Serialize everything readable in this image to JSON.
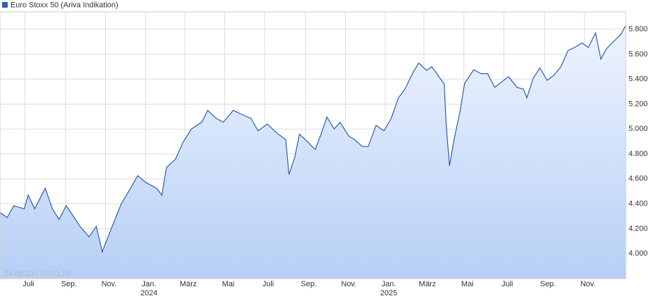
{
  "chart_data": {
    "type": "area",
    "range_label": "24.05.23 - 03.01.26",
    "xlim": [
      "2023-05-24",
      "2026-01-03"
    ],
    "ylim": [
      3800,
      5940
    ],
    "yticks": [
      {
        "value": 4000,
        "label": "4.000"
      },
      {
        "value": 4200,
        "label": "4.200"
      },
      {
        "value": 4400,
        "label": "4.400"
      },
      {
        "value": 4600,
        "label": "4.600"
      },
      {
        "value": 4800,
        "label": "4.800"
      },
      {
        "value": 5000,
        "label": "5.000"
      },
      {
        "value": 5200,
        "label": "5.200"
      },
      {
        "value": 5400,
        "label": "5.400"
      },
      {
        "value": 5600,
        "label": "5.600"
      },
      {
        "value": 5800,
        "label": "5.800"
      }
    ],
    "xticks": [
      {
        "value": "2023-07-01",
        "label": "Juli"
      },
      {
        "value": "2023-09-01",
        "label": "Sep."
      },
      {
        "value": "2023-11-01",
        "label": "Nov."
      },
      {
        "value": "2024-01-01",
        "label": "Jan.",
        "year": "2024"
      },
      {
        "value": "2024-03-01",
        "label": "März"
      },
      {
        "value": "2024-05-01",
        "label": "Mai"
      },
      {
        "value": "2024-07-01",
        "label": "Juli"
      },
      {
        "value": "2024-09-01",
        "label": "Sep."
      },
      {
        "value": "2024-11-01",
        "label": "Nov."
      },
      {
        "value": "2025-01-01",
        "label": "Jan.",
        "year": "2025"
      },
      {
        "value": "2025-03-01",
        "label": "März"
      },
      {
        "value": "2025-05-01",
        "label": "Mai"
      },
      {
        "value": "2025-07-01",
        "label": "Juli"
      },
      {
        "value": "2025-09-01",
        "label": "Sep."
      },
      {
        "value": "2025-11-01",
        "label": "Nov."
      }
    ],
    "grid": true,
    "x": [
      "2023-05-24",
      "2023-06-04",
      "2023-06-14",
      "2023-06-30",
      "2023-07-06",
      "2023-07-16",
      "2023-08-01",
      "2023-08-12",
      "2023-08-22",
      "2023-09-02",
      "2023-09-13",
      "2023-09-23",
      "2023-10-07",
      "2023-10-18",
      "2023-10-27",
      "2023-11-09",
      "2023-11-25",
      "2023-12-12",
      "2023-12-20",
      "2024-01-02",
      "2024-01-18",
      "2024-01-26",
      "2024-02-02",
      "2024-02-16",
      "2024-02-27",
      "2024-03-11",
      "2024-03-27",
      "2024-04-05",
      "2024-04-18",
      "2024-04-29",
      "2024-05-14",
      "2024-05-30",
      "2024-06-10",
      "2024-06-21",
      "2024-07-05",
      "2024-07-19",
      "2024-08-02",
      "2024-08-07",
      "2024-08-16",
      "2024-08-23",
      "2024-09-06",
      "2024-09-16",
      "2024-09-24",
      "2024-10-04",
      "2024-10-15",
      "2024-10-24",
      "2024-11-06",
      "2024-11-15",
      "2024-11-27",
      "2024-12-06",
      "2024-12-18",
      "2024-12-30",
      "2025-01-10",
      "2025-01-21",
      "2025-01-31",
      "2025-02-12",
      "2025-02-21",
      "2025-03-05",
      "2025-03-13",
      "2025-03-24",
      "2025-04-01",
      "2025-04-04",
      "2025-04-09",
      "2025-04-16",
      "2025-04-25",
      "2025-05-02",
      "2025-05-16",
      "2025-05-27",
      "2025-06-06",
      "2025-06-17",
      "2025-06-27",
      "2025-07-08",
      "2025-07-21",
      "2025-07-31",
      "2025-08-05",
      "2025-08-15",
      "2025-08-25",
      "2025-09-05",
      "2025-09-15",
      "2025-09-26",
      "2025-10-07",
      "2025-10-17",
      "2025-10-28",
      "2025-11-07",
      "2025-11-18",
      "2025-11-26",
      "2025-12-04",
      "2025-12-15",
      "2025-12-26",
      "2026-01-03"
    ],
    "series": [
      {
        "name": "Euro Stoxx 50 (Ariva Indikation)",
        "color": "#2a5db0",
        "values": [
          4330,
          4290,
          4385,
          4360,
          4470,
          4360,
          4525,
          4360,
          4275,
          4385,
          4300,
          4220,
          4135,
          4220,
          4015,
          4190,
          4400,
          4550,
          4625,
          4570,
          4525,
          4470,
          4690,
          4760,
          4890,
          5000,
          5055,
          5150,
          5085,
          5055,
          5150,
          5110,
          5085,
          4985,
          5040,
          4970,
          4915,
          4635,
          4775,
          4960,
          4890,
          4835,
          4945,
          5095,
          5000,
          5055,
          4945,
          4915,
          4860,
          4860,
          5030,
          4985,
          5085,
          5250,
          5320,
          5450,
          5530,
          5470,
          5500,
          5420,
          5360,
          5030,
          4705,
          4915,
          5140,
          5365,
          5475,
          5445,
          5445,
          5335,
          5375,
          5420,
          5335,
          5320,
          5250,
          5410,
          5490,
          5390,
          5430,
          5500,
          5630,
          5655,
          5690,
          5655,
          5770,
          5560,
          5640,
          5700,
          5755,
          5830
        ]
      }
    ]
  }
}
